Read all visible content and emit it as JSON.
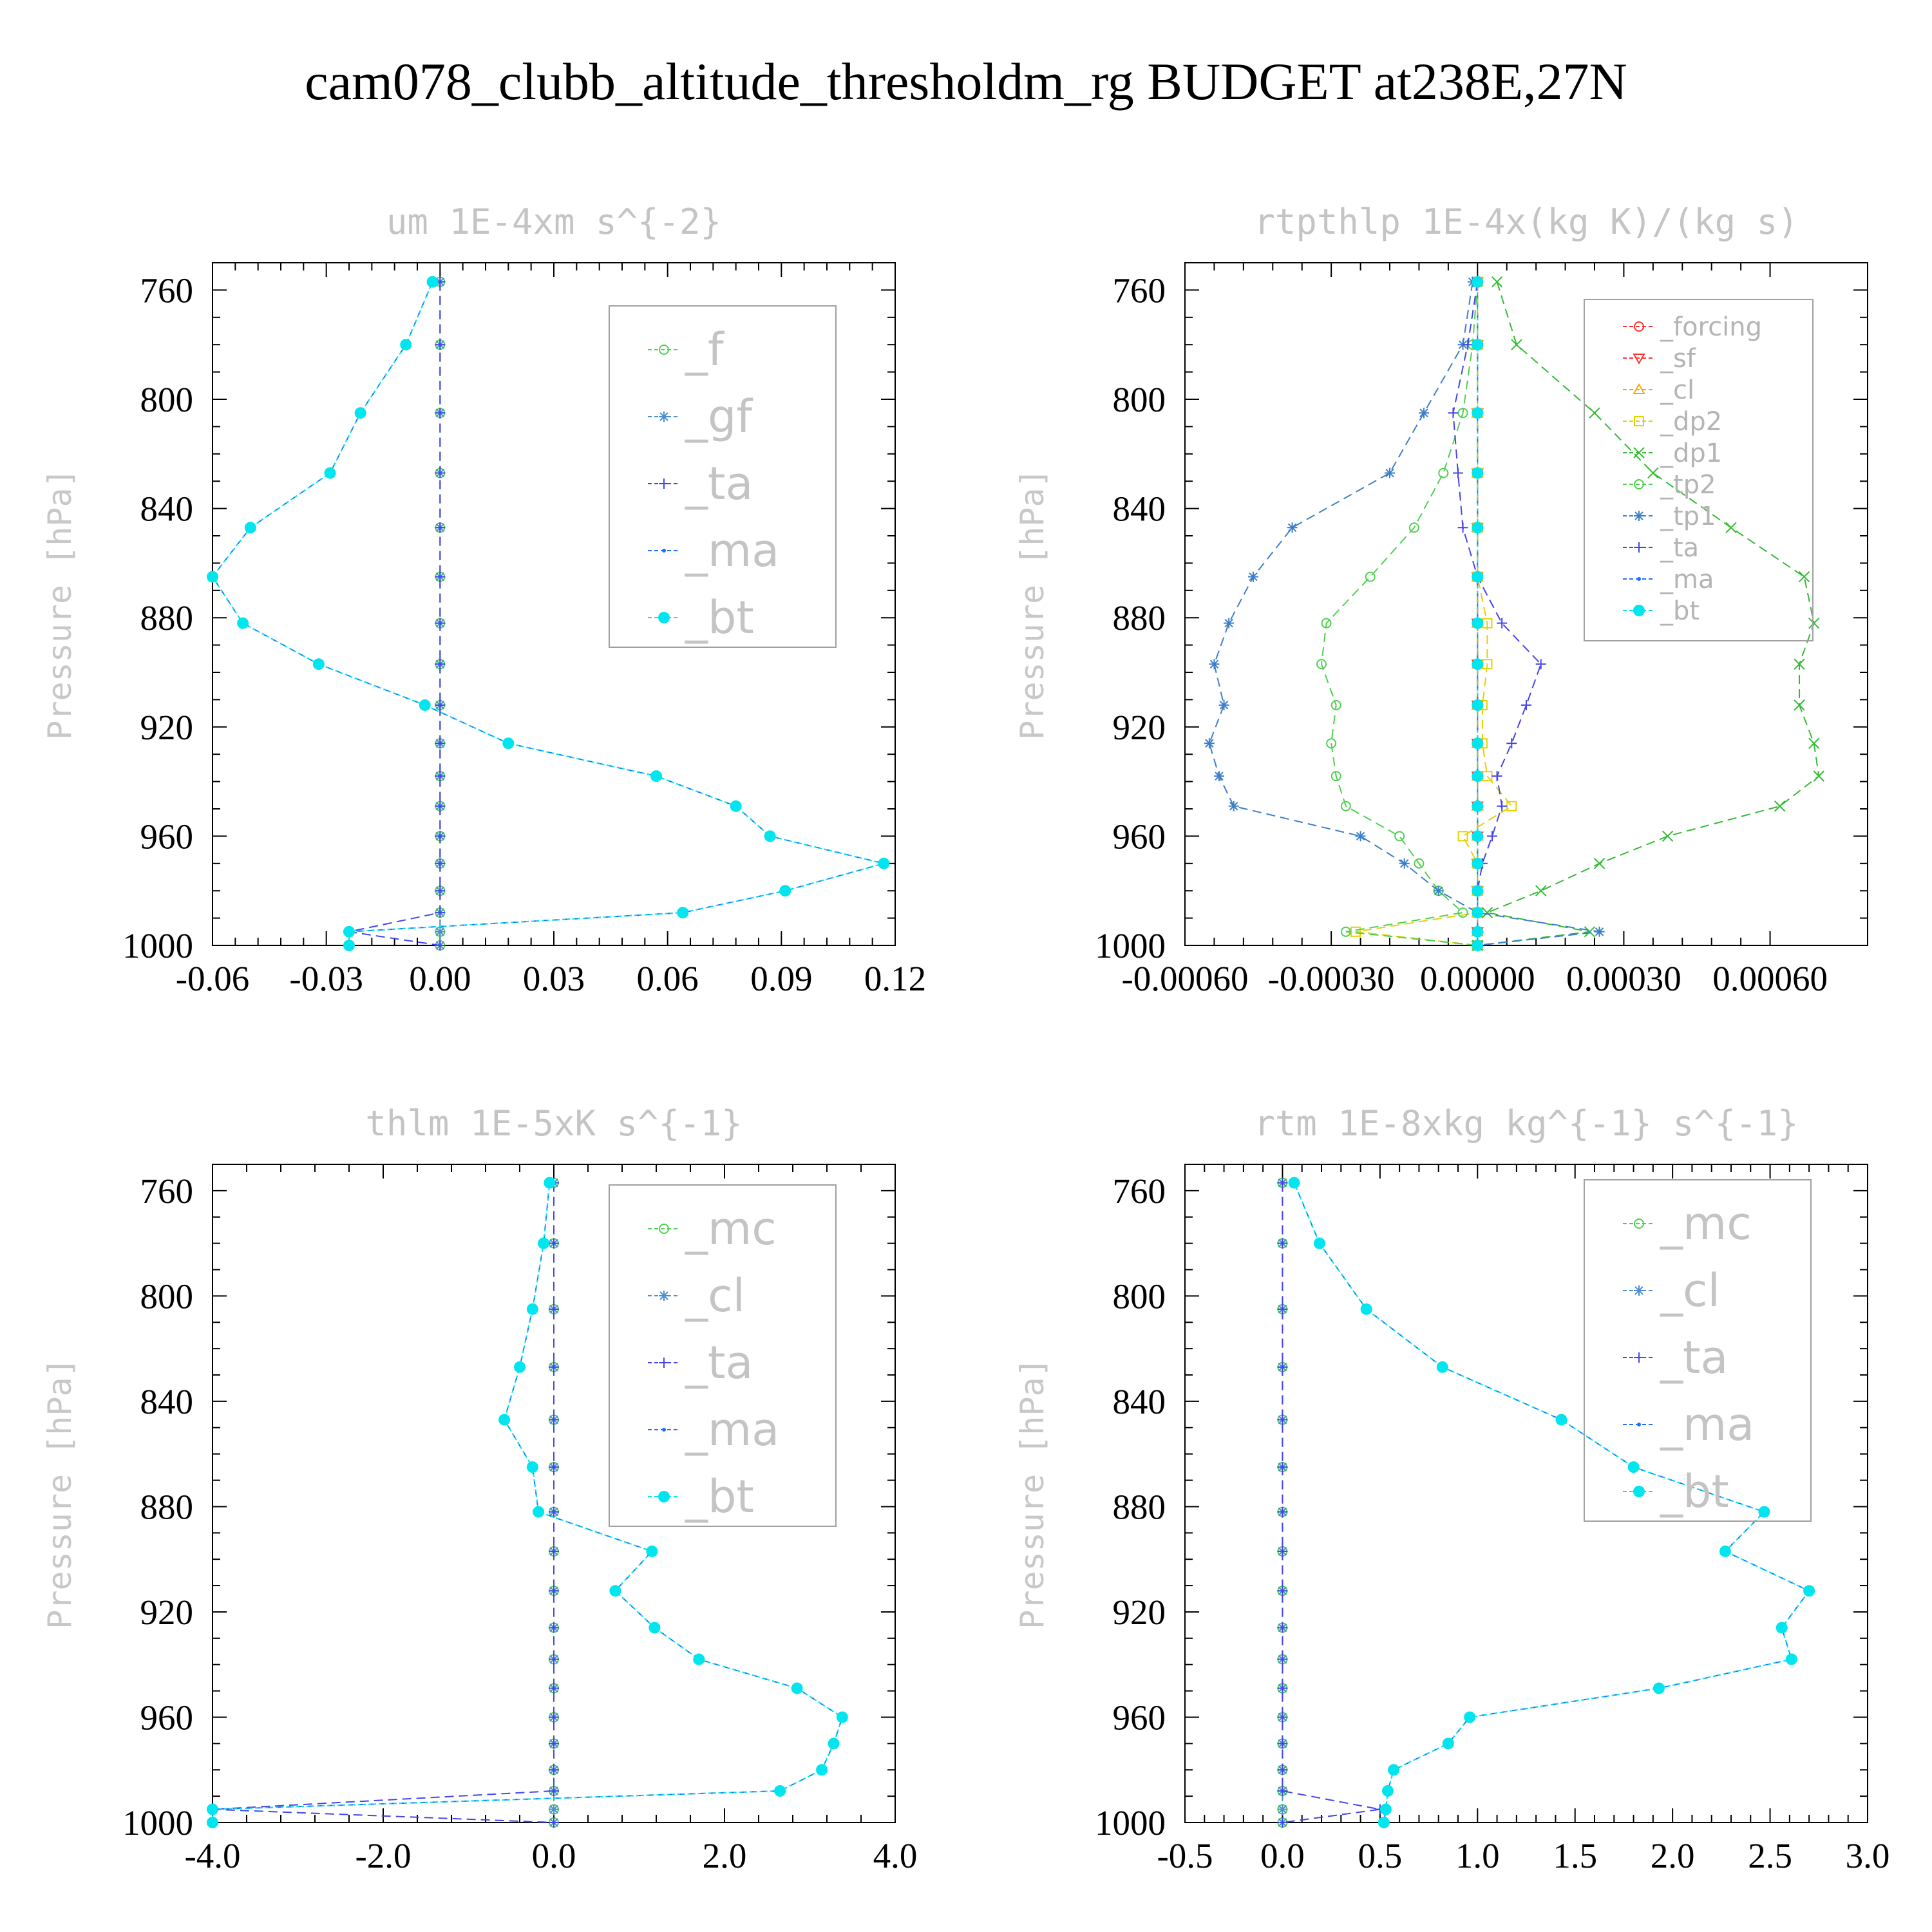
{
  "page_title": "cam078_clubb_altitude_thresholdm_rg  BUDGET at238E,27N",
  "colors": {
    "cyan": "#00e5ee",
    "blue": "#1f6fff",
    "green": "#4fd14f",
    "gf": "#4a8fd0",
    "ta": "#4444ee",
    "red": "#ff3030",
    "orange": "#ffa500",
    "yellow": "#e8d000",
    "dp1": "#33bb33",
    "tp1": "#3c7fc8"
  },
  "chart_data": [
    {
      "type": "line",
      "title": "um   1E-4xm s^{-2}",
      "ylabel": "Pressure [hPa]",
      "xlim": [
        -0.06,
        0.12
      ],
      "ylim": [
        750,
        1000
      ],
      "yticks": [
        760,
        800,
        840,
        880,
        920,
        960,
        1000
      ],
      "xticks": [
        -0.06,
        -0.03,
        0.0,
        0.03,
        0.06,
        0.09,
        0.12
      ],
      "xtick_labels": [
        "-0.06",
        "-0.03",
        "0.00",
        "0.03",
        "0.06",
        "0.09",
        "0.12"
      ],
      "legend_style": "big",
      "levels": [
        757,
        780,
        805,
        827,
        847,
        865,
        882,
        897,
        912,
        926,
        938,
        949,
        960,
        970,
        980,
        988,
        995,
        1000
      ],
      "series": [
        {
          "name": "_f",
          "color": "green",
          "marker": "circle-open",
          "values": [
            0,
            0,
            0,
            0,
            0,
            0,
            0,
            0,
            0,
            0,
            0,
            0,
            0,
            0,
            0,
            0,
            0,
            0
          ]
        },
        {
          "name": "_gf",
          "color": "gf",
          "marker": "asterisk",
          "values": [
            0,
            0,
            0,
            0,
            0,
            0,
            0,
            0,
            0,
            0,
            0,
            0,
            0,
            0,
            0,
            0,
            0,
            0
          ]
        },
        {
          "name": "_ta",
          "color": "ta",
          "marker": "plus",
          "values": [
            0,
            0,
            0,
            0,
            0,
            0,
            0,
            0,
            0,
            0,
            0,
            0,
            0,
            0,
            0,
            0,
            -0.024,
            0
          ]
        },
        {
          "name": "_ma",
          "color": "blue",
          "marker": "dot",
          "values": [
            -0.002,
            -0.009,
            -0.021,
            -0.029,
            -0.05,
            -0.06,
            -0.052,
            -0.032,
            -0.004,
            0.018,
            0.057,
            0.078,
            0.087,
            0.117,
            0.091,
            0.064,
            -0.024,
            -0.024
          ]
        },
        {
          "name": "_bt",
          "color": "cyan",
          "marker": "filled",
          "values": [
            -0.002,
            -0.009,
            -0.021,
            -0.029,
            -0.05,
            -0.06,
            -0.052,
            -0.032,
            -0.004,
            0.018,
            0.057,
            0.078,
            0.087,
            0.117,
            0.091,
            0.064,
            -0.024,
            -0.024
          ]
        }
      ]
    },
    {
      "type": "line",
      "title": "rtpthlp   1E-4x(kg K)/(kg s)",
      "ylabel": "Pressure [hPa]",
      "xlim": [
        -0.0006,
        0.0008
      ],
      "ylim": [
        750,
        1000
      ],
      "yticks": [
        760,
        800,
        840,
        880,
        920,
        960,
        1000
      ],
      "xticks": [
        -0.0006,
        -0.0003,
        0.0,
        0.0003,
        0.0006
      ],
      "xtick_labels": [
        "-0.00060",
        "-0.00030",
        "0.00000",
        "0.00030",
        "0.00060"
      ],
      "legend_style": "small",
      "levels": [
        757,
        780,
        805,
        827,
        847,
        865,
        882,
        897,
        912,
        926,
        938,
        949,
        960,
        970,
        980,
        988,
        995,
        1000
      ],
      "series": [
        {
          "name": "_forcing",
          "color": "red",
          "marker": "circle-open",
          "values": [
            0,
            0,
            0,
            0,
            0,
            0,
            0,
            0,
            0,
            0,
            0,
            0,
            0,
            0,
            0,
            0,
            0,
            0
          ]
        },
        {
          "name": "_sf",
          "color": "red",
          "marker": "tri-down",
          "values": [
            0,
            0,
            0,
            0,
            0,
            0,
            0,
            0,
            0,
            0,
            0,
            0,
            0,
            0,
            0,
            0,
            0,
            0
          ]
        },
        {
          "name": "_cl",
          "color": "orange",
          "marker": "tri-up",
          "values": [
            0,
            0,
            0,
            0,
            0,
            0,
            0,
            0,
            0,
            0,
            0,
            0,
            0,
            0,
            0,
            0,
            0,
            0
          ]
        },
        {
          "name": "_dp2",
          "color": "yellow",
          "marker": "square",
          "values": [
            0,
            0,
            0,
            0,
            0,
            0,
            2e-05,
            2e-05,
            1e-05,
            1e-05,
            2e-05,
            7e-05,
            -3e-05,
            0,
            0,
            0,
            -0.00025,
            0
          ]
        },
        {
          "name": "_dp1",
          "color": "dp1",
          "marker": "cross",
          "values": [
            4e-05,
            8e-05,
            0.00024,
            0.00036,
            0.00052,
            0.00067,
            0.00069,
            0.00066,
            0.00066,
            0.00069,
            0.0007,
            0.00062,
            0.00039,
            0.00025,
            0.00013,
            2e-05,
            0.00023,
            0
          ]
        },
        {
          "name": "_tp2",
          "color": "green",
          "marker": "circle-open",
          "values": [
            0,
            -1e-05,
            -3e-05,
            -7e-05,
            -0.00013,
            -0.00022,
            -0.00031,
            -0.00032,
            -0.00029,
            -0.0003,
            -0.00029,
            -0.00027,
            -0.00016,
            -0.00012,
            -8e-05,
            -3e-05,
            -0.00027,
            0
          ]
        },
        {
          "name": "_tp1",
          "color": "tp1",
          "marker": "asterisk",
          "values": [
            -1e-05,
            -3e-05,
            -0.00011,
            -0.00018,
            -0.00038,
            -0.00046,
            -0.00051,
            -0.00054,
            -0.00052,
            -0.00055,
            -0.00053,
            -0.0005,
            -0.00024,
            -0.00015,
            -8e-05,
            0,
            0.00025,
            0
          ]
        },
        {
          "name": "_ta",
          "color": "ta",
          "marker": "plus",
          "values": [
            0,
            -2e-05,
            -5e-05,
            -4e-05,
            -3e-05,
            0,
            5e-05,
            0.00013,
            0.0001,
            7e-05,
            4e-05,
            5e-05,
            3e-05,
            1e-05,
            0,
            0,
            0,
            0
          ]
        },
        {
          "name": "_ma",
          "color": "blue",
          "marker": "dot",
          "values": [
            0,
            0,
            0,
            0,
            0,
            0,
            0,
            0,
            0,
            0,
            0,
            0,
            0,
            0,
            0,
            0,
            0,
            0
          ]
        },
        {
          "name": "_bt",
          "color": "cyan",
          "marker": "filled",
          "values": [
            0,
            0,
            0,
            0,
            0,
            0,
            0,
            0,
            0,
            0,
            0,
            0,
            0,
            0,
            0,
            0,
            0,
            0
          ]
        }
      ]
    },
    {
      "type": "line",
      "title": "thlm   1E-5xK s^{-1}",
      "ylabel": "Pressure [hPa]",
      "xlim": [
        -4.0,
        4.0
      ],
      "ylim": [
        750,
        1000
      ],
      "yticks": [
        760,
        800,
        840,
        880,
        920,
        960,
        1000
      ],
      "xticks": [
        -4.0,
        -2.0,
        0.0,
        2.0,
        4.0
      ],
      "xtick_labels": [
        "-4.0",
        "-2.0",
        "0.0",
        "2.0",
        "4.0"
      ],
      "legend_style": "big",
      "levels": [
        757,
        780,
        805,
        827,
        847,
        865,
        882,
        897,
        912,
        926,
        938,
        949,
        960,
        970,
        980,
        988,
        995,
        1000
      ],
      "series": [
        {
          "name": "_mc",
          "color": "green",
          "marker": "circle-open",
          "values": [
            0,
            0,
            0,
            0,
            0,
            0,
            0,
            0,
            0,
            0,
            0,
            0,
            0,
            0,
            0,
            0,
            0,
            0
          ]
        },
        {
          "name": "_cl",
          "color": "gf",
          "marker": "asterisk",
          "values": [
            0,
            0,
            0,
            0,
            0,
            0,
            0,
            0,
            0,
            0,
            0,
            0,
            0,
            0,
            0,
            0,
            0,
            0
          ]
        },
        {
          "name": "_ta",
          "color": "ta",
          "marker": "plus",
          "values": [
            0,
            0,
            0,
            0,
            0,
            0,
            0,
            0,
            0,
            0,
            0,
            0,
            0,
            0,
            0,
            0,
            -4.0,
            0
          ]
        },
        {
          "name": "_ma",
          "color": "blue",
          "marker": "dot",
          "values": [
            -0.05,
            -0.12,
            -0.25,
            -0.4,
            -0.58,
            -0.25,
            -0.18,
            1.15,
            0.72,
            1.18,
            1.7,
            2.85,
            3.38,
            3.28,
            3.14,
            2.65,
            -4.0,
            -4.0
          ]
        },
        {
          "name": "_bt",
          "color": "cyan",
          "marker": "filled",
          "values": [
            -0.05,
            -0.12,
            -0.25,
            -0.4,
            -0.58,
            -0.25,
            -0.18,
            1.15,
            0.72,
            1.18,
            1.7,
            2.85,
            3.38,
            3.28,
            3.14,
            2.65,
            -4.0,
            -4.0
          ]
        }
      ]
    },
    {
      "type": "line",
      "title": "rtm   1E-8xkg kg^{-1} s^{-1}",
      "ylabel": "Pressure [hPa]",
      "xlim": [
        -0.5,
        3.0
      ],
      "ylim": [
        750,
        1000
      ],
      "yticks": [
        760,
        800,
        840,
        880,
        920,
        960,
        1000
      ],
      "xticks": [
        -0.5,
        0.0,
        0.5,
        1.0,
        1.5,
        2.0,
        2.5,
        3.0
      ],
      "xtick_labels": [
        "-0.5",
        "0.0",
        "0.5",
        "1.0",
        "1.5",
        "2.0",
        "2.5",
        "3.0"
      ],
      "legend_style": "big",
      "levels": [
        757,
        780,
        805,
        827,
        847,
        865,
        882,
        897,
        912,
        926,
        938,
        949,
        960,
        970,
        980,
        988,
        995,
        1000
      ],
      "series": [
        {
          "name": "_mc",
          "color": "green",
          "marker": "circle-open",
          "values": [
            0,
            0,
            0,
            0,
            0,
            0,
            0,
            0,
            0,
            0,
            0,
            0,
            0,
            0,
            0,
            0,
            0,
            0
          ]
        },
        {
          "name": "_cl",
          "color": "gf",
          "marker": "asterisk",
          "values": [
            0,
            0,
            0,
            0,
            0,
            0,
            0,
            0,
            0,
            0,
            0,
            0,
            0,
            0,
            0,
            0,
            0,
            0
          ]
        },
        {
          "name": "_ta",
          "color": "ta",
          "marker": "plus",
          "values": [
            0,
            0,
            0,
            0,
            0,
            0,
            0,
            0,
            0,
            0,
            0,
            0,
            0,
            0,
            0,
            0,
            0.5,
            0
          ]
        },
        {
          "name": "_ma",
          "color": "blue",
          "marker": "dot",
          "values": [
            0.06,
            0.19,
            0.43,
            0.82,
            1.43,
            1.8,
            2.47,
            2.27,
            2.7,
            2.56,
            2.61,
            1.93,
            0.96,
            0.85,
            0.57,
            0.54,
            0.53,
            0.52
          ]
        },
        {
          "name": "_bt",
          "color": "cyan",
          "marker": "filled",
          "values": [
            0.06,
            0.19,
            0.43,
            0.82,
            1.43,
            1.8,
            2.47,
            2.27,
            2.7,
            2.56,
            2.61,
            1.93,
            0.96,
            0.85,
            0.57,
            0.54,
            0.53,
            0.52
          ]
        }
      ]
    }
  ]
}
